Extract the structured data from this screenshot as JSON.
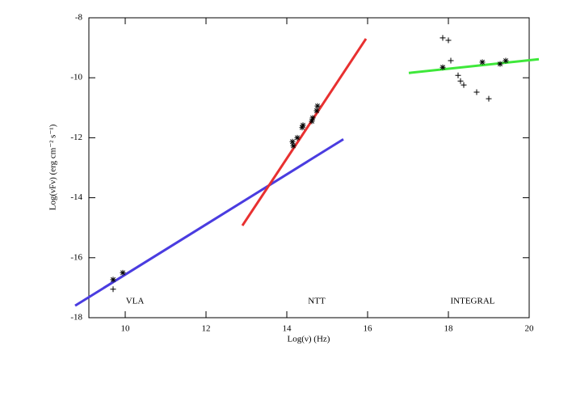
{
  "chart_data": {
    "type": "scatter",
    "xlabel": "Log(ν) (Hz)",
    "ylabel": "Log(νFν) (erg cm⁻² s⁻¹)",
    "xlim": [
      9.1,
      20
    ],
    "ylim": [
      -18,
      -8
    ],
    "xticks": [
      10,
      12,
      14,
      16,
      18,
      20
    ],
    "yticks": [
      -18,
      -16,
      -14,
      -12,
      -10,
      -8
    ],
    "annotations": [
      "VLA",
      "NTT",
      "INTEGRAL"
    ],
    "series": [
      {
        "style": "line",
        "color": "#4a3ce0",
        "x": [
          8.76,
          15.4
        ],
        "values": [
          -17.6,
          -12.05
        ]
      },
      {
        "style": "line",
        "color": "#e83030",
        "x": [
          12.9,
          15.96
        ],
        "values": [
          -14.93,
          -8.7
        ]
      },
      {
        "style": "line",
        "color": "#3ee83a",
        "x": [
          17.02,
          20.24
        ],
        "values": [
          -9.84,
          -9.38
        ]
      },
      {
        "style": "marker",
        "marker": "*",
        "color": "#000000",
        "x": [
          9.7,
          9.94,
          14.14,
          14.16,
          14.26,
          14.38,
          14.4,
          14.62,
          14.64,
          14.74,
          14.76,
          17.86,
          18.84,
          19.28,
          19.42
        ],
        "values": [
          -16.73,
          -16.5,
          -12.13,
          -12.27,
          -12.0,
          -11.66,
          -11.58,
          -11.45,
          -11.34,
          -11.1,
          -10.94,
          -9.65,
          -9.48,
          -9.54,
          -9.43
        ]
      },
      {
        "style": "marker",
        "marker": "+",
        "color": "#000000",
        "x": [
          9.7,
          17.86,
          18.0,
          18.06,
          18.24,
          18.3,
          18.38,
          18.7,
          19.0
        ],
        "values": [
          -17.05,
          -8.67,
          -8.75,
          -9.43,
          -9.92,
          -10.11,
          -10.24,
          -10.48,
          -10.7
        ]
      }
    ]
  }
}
